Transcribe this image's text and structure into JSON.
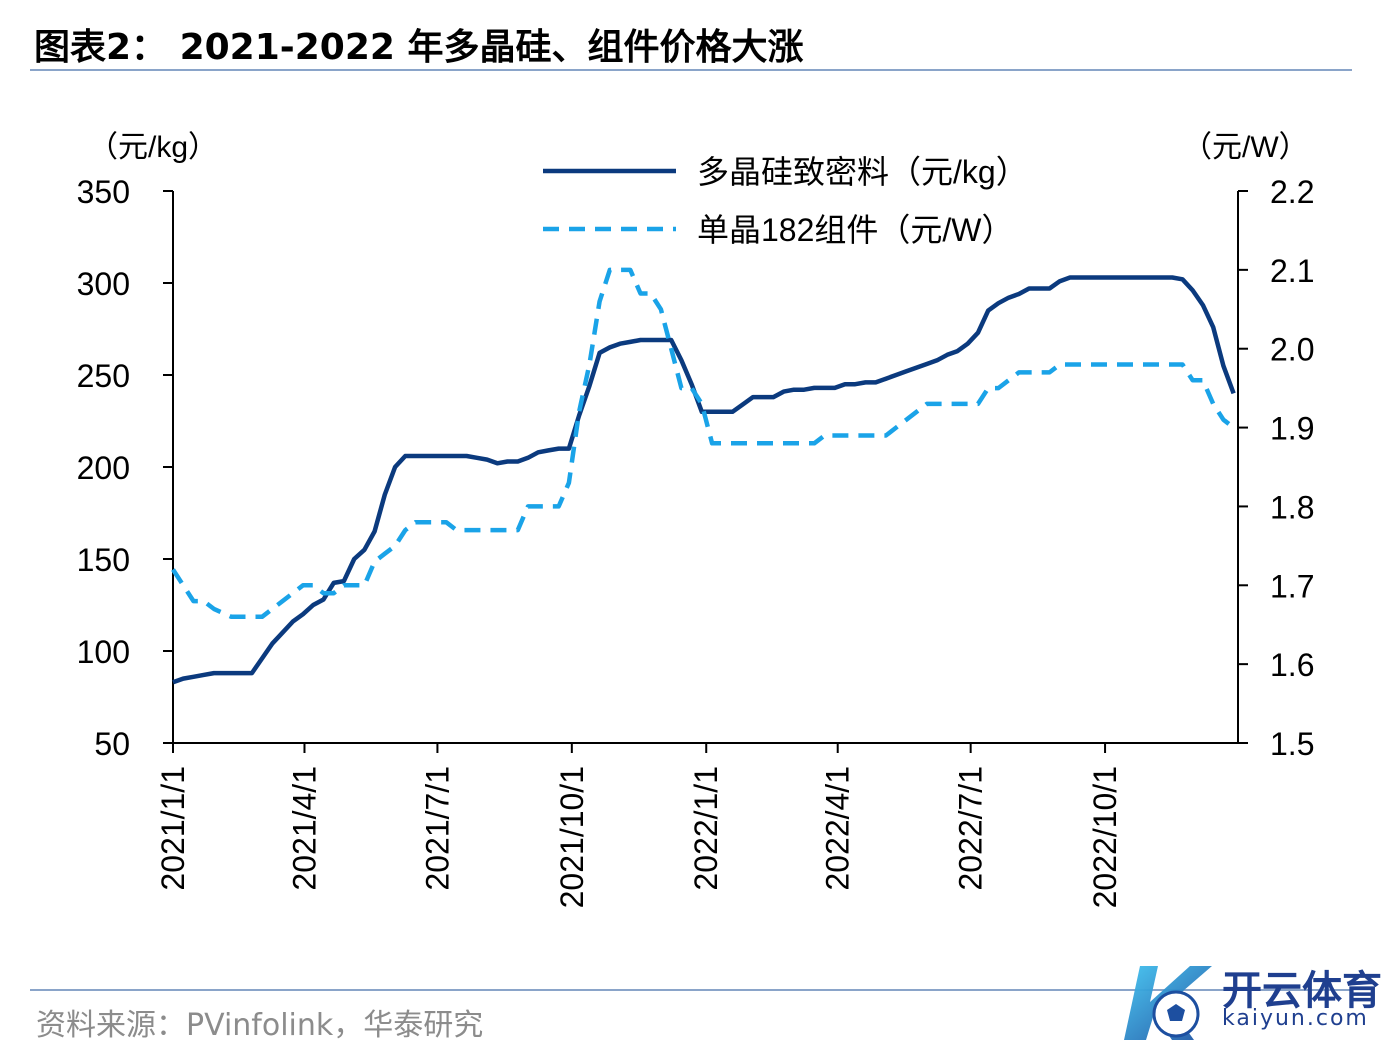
{
  "header": {
    "title": "图表2： 2021-2022 年多晶硅、组件价格大涨"
  },
  "footer": {
    "source": "资料来源：PVinfolink，华泰研究"
  },
  "watermark": {
    "name": "开云体育",
    "url": "kaiyun.com"
  },
  "chart_data": {
    "type": "line",
    "left_axis_unit": "（元/kg）",
    "right_axis_unit": "（元/W）",
    "ylim_left": [
      50,
      350
    ],
    "yticks_left": [
      50,
      100,
      150,
      200,
      250,
      300,
      350
    ],
    "ylim_right": [
      1.5,
      2.2
    ],
    "yticks_right": [
      "1.5",
      "1.6",
      "1.7",
      "1.8",
      "1.9",
      "2.0",
      "2.1",
      "2.2"
    ],
    "x_range": [
      "2021-01-01",
      "2022-12-31"
    ],
    "x_ticks": [
      {
        "label": "2021/1/1",
        "date": "2021-01-01"
      },
      {
        "label": "2021/4/1",
        "date": "2021-04-01"
      },
      {
        "label": "2021/7/1",
        "date": "2021-07-01"
      },
      {
        "label": "2021/10/1",
        "date": "2021-10-01"
      },
      {
        "label": "2022/1/1",
        "date": "2022-01-01"
      },
      {
        "label": "2022/4/1",
        "date": "2022-04-01"
      },
      {
        "label": "2022/7/1",
        "date": "2022-07-01"
      },
      {
        "label": "2022/10/1",
        "date": "2022-10-01"
      }
    ],
    "legend_position": "top-center",
    "series": [
      {
        "name": "多晶硅致密料（元/kg）",
        "axis": "left",
        "color": "#0b3a7e",
        "style": "solid",
        "points": [
          [
            "2021-01-01",
            83
          ],
          [
            "2021-01-08",
            85
          ],
          [
            "2021-01-15",
            86
          ],
          [
            "2021-01-22",
            87
          ],
          [
            "2021-01-29",
            88
          ],
          [
            "2021-02-10",
            88
          ],
          [
            "2021-02-24",
            88
          ],
          [
            "2021-03-03",
            96
          ],
          [
            "2021-03-10",
            104
          ],
          [
            "2021-03-17",
            110
          ],
          [
            "2021-03-24",
            116
          ],
          [
            "2021-03-31",
            120
          ],
          [
            "2021-04-07",
            125
          ],
          [
            "2021-04-14",
            128
          ],
          [
            "2021-04-21",
            137
          ],
          [
            "2021-04-28",
            138
          ],
          [
            "2021-05-05",
            150
          ],
          [
            "2021-05-12",
            155
          ],
          [
            "2021-05-19",
            165
          ],
          [
            "2021-05-26",
            185
          ],
          [
            "2021-06-02",
            200
          ],
          [
            "2021-06-09",
            206
          ],
          [
            "2021-06-16",
            206
          ],
          [
            "2021-06-23",
            206
          ],
          [
            "2021-06-30",
            206
          ],
          [
            "2021-07-07",
            206
          ],
          [
            "2021-07-14",
            206
          ],
          [
            "2021-07-21",
            206
          ],
          [
            "2021-07-28",
            205
          ],
          [
            "2021-08-04",
            204
          ],
          [
            "2021-08-11",
            202
          ],
          [
            "2021-08-18",
            203
          ],
          [
            "2021-08-25",
            203
          ],
          [
            "2021-09-01",
            205
          ],
          [
            "2021-09-08",
            208
          ],
          [
            "2021-09-15",
            209
          ],
          [
            "2021-09-22",
            210
          ],
          [
            "2021-09-29",
            210
          ],
          [
            "2021-10-06",
            228
          ],
          [
            "2021-10-13",
            244
          ],
          [
            "2021-10-20",
            262
          ],
          [
            "2021-10-27",
            265
          ],
          [
            "2021-11-03",
            267
          ],
          [
            "2021-11-10",
            268
          ],
          [
            "2021-11-17",
            269
          ],
          [
            "2021-11-24",
            269
          ],
          [
            "2021-12-01",
            269
          ],
          [
            "2021-12-08",
            269
          ],
          [
            "2021-12-15",
            258
          ],
          [
            "2021-12-22",
            245
          ],
          [
            "2021-12-29",
            230
          ],
          [
            "2022-01-05",
            230
          ],
          [
            "2022-01-12",
            230
          ],
          [
            "2022-01-19",
            230
          ],
          [
            "2022-01-26",
            234
          ],
          [
            "2022-02-02",
            238
          ],
          [
            "2022-02-09",
            238
          ],
          [
            "2022-02-16",
            238
          ],
          [
            "2022-02-23",
            241
          ],
          [
            "2022-03-02",
            242
          ],
          [
            "2022-03-09",
            242
          ],
          [
            "2022-03-16",
            243
          ],
          [
            "2022-03-23",
            243
          ],
          [
            "2022-03-30",
            243
          ],
          [
            "2022-04-06",
            245
          ],
          [
            "2022-04-13",
            245
          ],
          [
            "2022-04-20",
            246
          ],
          [
            "2022-04-27",
            246
          ],
          [
            "2022-05-04",
            248
          ],
          [
            "2022-05-11",
            250
          ],
          [
            "2022-05-18",
            252
          ],
          [
            "2022-05-25",
            254
          ],
          [
            "2022-06-01",
            256
          ],
          [
            "2022-06-08",
            258
          ],
          [
            "2022-06-15",
            261
          ],
          [
            "2022-06-22",
            263
          ],
          [
            "2022-06-29",
            267
          ],
          [
            "2022-07-06",
            273
          ],
          [
            "2022-07-13",
            285
          ],
          [
            "2022-07-20",
            289
          ],
          [
            "2022-07-27",
            292
          ],
          [
            "2022-08-03",
            294
          ],
          [
            "2022-08-10",
            297
          ],
          [
            "2022-08-17",
            297
          ],
          [
            "2022-08-24",
            297
          ],
          [
            "2022-08-31",
            301
          ],
          [
            "2022-09-07",
            303
          ],
          [
            "2022-09-14",
            303
          ],
          [
            "2022-09-21",
            303
          ],
          [
            "2022-09-28",
            303
          ],
          [
            "2022-10-05",
            303
          ],
          [
            "2022-10-12",
            303
          ],
          [
            "2022-10-19",
            303
          ],
          [
            "2022-10-26",
            303
          ],
          [
            "2022-11-02",
            303
          ],
          [
            "2022-11-09",
            303
          ],
          [
            "2022-11-16",
            303
          ],
          [
            "2022-11-23",
            302
          ],
          [
            "2022-11-30",
            296
          ],
          [
            "2022-12-07",
            288
          ],
          [
            "2022-12-14",
            276
          ],
          [
            "2022-12-21",
            255
          ],
          [
            "2022-12-28",
            240
          ]
        ]
      },
      {
        "name": "单晶182组件（元/W）",
        "axis": "right",
        "color": "#1aa3e8",
        "style": "dashed",
        "points": [
          [
            "2021-01-01",
            1.72
          ],
          [
            "2021-01-08",
            1.7
          ],
          [
            "2021-01-15",
            1.68
          ],
          [
            "2021-01-22",
            1.68
          ],
          [
            "2021-01-29",
            1.67
          ],
          [
            "2021-02-10",
            1.66
          ],
          [
            "2021-02-24",
            1.66
          ],
          [
            "2021-03-03",
            1.66
          ],
          [
            "2021-03-10",
            1.67
          ],
          [
            "2021-03-17",
            1.68
          ],
          [
            "2021-03-24",
            1.69
          ],
          [
            "2021-03-31",
            1.7
          ],
          [
            "2021-04-07",
            1.7
          ],
          [
            "2021-04-14",
            1.69
          ],
          [
            "2021-04-21",
            1.69
          ],
          [
            "2021-04-28",
            1.7
          ],
          [
            "2021-05-05",
            1.7
          ],
          [
            "2021-05-12",
            1.7
          ],
          [
            "2021-05-19",
            1.73
          ],
          [
            "2021-05-26",
            1.74
          ],
          [
            "2021-06-02",
            1.75
          ],
          [
            "2021-06-09",
            1.77
          ],
          [
            "2021-06-16",
            1.78
          ],
          [
            "2021-06-23",
            1.78
          ],
          [
            "2021-06-30",
            1.78
          ],
          [
            "2021-07-07",
            1.78
          ],
          [
            "2021-07-14",
            1.77
          ],
          [
            "2021-07-21",
            1.77
          ],
          [
            "2021-07-28",
            1.77
          ],
          [
            "2021-08-04",
            1.77
          ],
          [
            "2021-08-11",
            1.77
          ],
          [
            "2021-08-18",
            1.77
          ],
          [
            "2021-08-25",
            1.77
          ],
          [
            "2021-09-01",
            1.8
          ],
          [
            "2021-09-08",
            1.8
          ],
          [
            "2021-09-15",
            1.8
          ],
          [
            "2021-09-22",
            1.8
          ],
          [
            "2021-09-29",
            1.83
          ],
          [
            "2021-10-06",
            1.92
          ],
          [
            "2021-10-13",
            1.98
          ],
          [
            "2021-10-20",
            2.06
          ],
          [
            "2021-10-27",
            2.1
          ],
          [
            "2021-11-03",
            2.1
          ],
          [
            "2021-11-10",
            2.1
          ],
          [
            "2021-11-17",
            2.07
          ],
          [
            "2021-11-24",
            2.07
          ],
          [
            "2021-12-01",
            2.05
          ],
          [
            "2021-12-08",
            2.0
          ],
          [
            "2021-12-15",
            1.95
          ],
          [
            "2021-12-22",
            1.95
          ],
          [
            "2021-12-29",
            1.93
          ],
          [
            "2022-01-05",
            1.88
          ],
          [
            "2022-01-19",
            1.88
          ],
          [
            "2022-02-02",
            1.88
          ],
          [
            "2022-02-16",
            1.88
          ],
          [
            "2022-03-02",
            1.88
          ],
          [
            "2022-03-16",
            1.88
          ],
          [
            "2022-03-23",
            1.89
          ],
          [
            "2022-03-30",
            1.89
          ],
          [
            "2022-04-13",
            1.89
          ],
          [
            "2022-04-27",
            1.89
          ],
          [
            "2022-05-04",
            1.89
          ],
          [
            "2022-05-11",
            1.9
          ],
          [
            "2022-05-18",
            1.91
          ],
          [
            "2022-05-25",
            1.92
          ],
          [
            "2022-06-01",
            1.93
          ],
          [
            "2022-06-15",
            1.93
          ],
          [
            "2022-06-29",
            1.93
          ],
          [
            "2022-07-06",
            1.93
          ],
          [
            "2022-07-13",
            1.95
          ],
          [
            "2022-07-20",
            1.95
          ],
          [
            "2022-07-27",
            1.96
          ],
          [
            "2022-08-03",
            1.97
          ],
          [
            "2022-08-17",
            1.97
          ],
          [
            "2022-08-24",
            1.97
          ],
          [
            "2022-08-31",
            1.98
          ],
          [
            "2022-09-07",
            1.98
          ],
          [
            "2022-09-21",
            1.98
          ],
          [
            "2022-10-05",
            1.98
          ],
          [
            "2022-10-19",
            1.98
          ],
          [
            "2022-11-02",
            1.98
          ],
          [
            "2022-11-16",
            1.98
          ],
          [
            "2022-11-23",
            1.98
          ],
          [
            "2022-11-30",
            1.96
          ],
          [
            "2022-12-07",
            1.96
          ],
          [
            "2022-12-14",
            1.93
          ],
          [
            "2022-12-21",
            1.91
          ],
          [
            "2022-12-28",
            1.9
          ]
        ]
      }
    ]
  }
}
